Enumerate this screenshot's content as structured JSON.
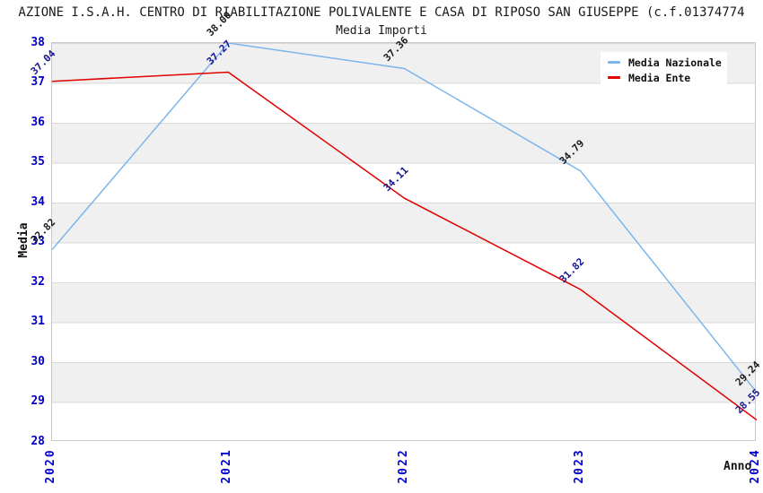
{
  "title": "AZIONE I.S.A.H. CENTRO DI RIABILITAZIONE POLIVALENTE E CASA DI RIPOSO SAN GIUSEPPE (c.f.01374774",
  "subtitle": "Media Importi",
  "axis": {
    "tick_color": "#0000cc",
    "xlabel": "Anno",
    "ylabel": "Media"
  },
  "chart_data": {
    "type": "line",
    "title": "Media Importi",
    "xlabel": "Anno",
    "ylabel": "Media",
    "categories": [
      "2020",
      "2021",
      "2022",
      "2023",
      "2024"
    ],
    "series": [
      {
        "name": "Media Nazionale",
        "color": "#7cb5ec",
        "label_color": "#1a1a1a",
        "values": [
          32.82,
          38.0,
          37.36,
          34.79,
          29.24
        ]
      },
      {
        "name": "Media Ente",
        "color": "#e00000",
        "label_color": "#15158f",
        "values": [
          37.04,
          37.27,
          34.11,
          31.82,
          28.55
        ]
      }
    ],
    "ylim": [
      28,
      38
    ],
    "ytick_step": 1,
    "grid": "horizontal-bands",
    "legend_position": "top-right"
  }
}
